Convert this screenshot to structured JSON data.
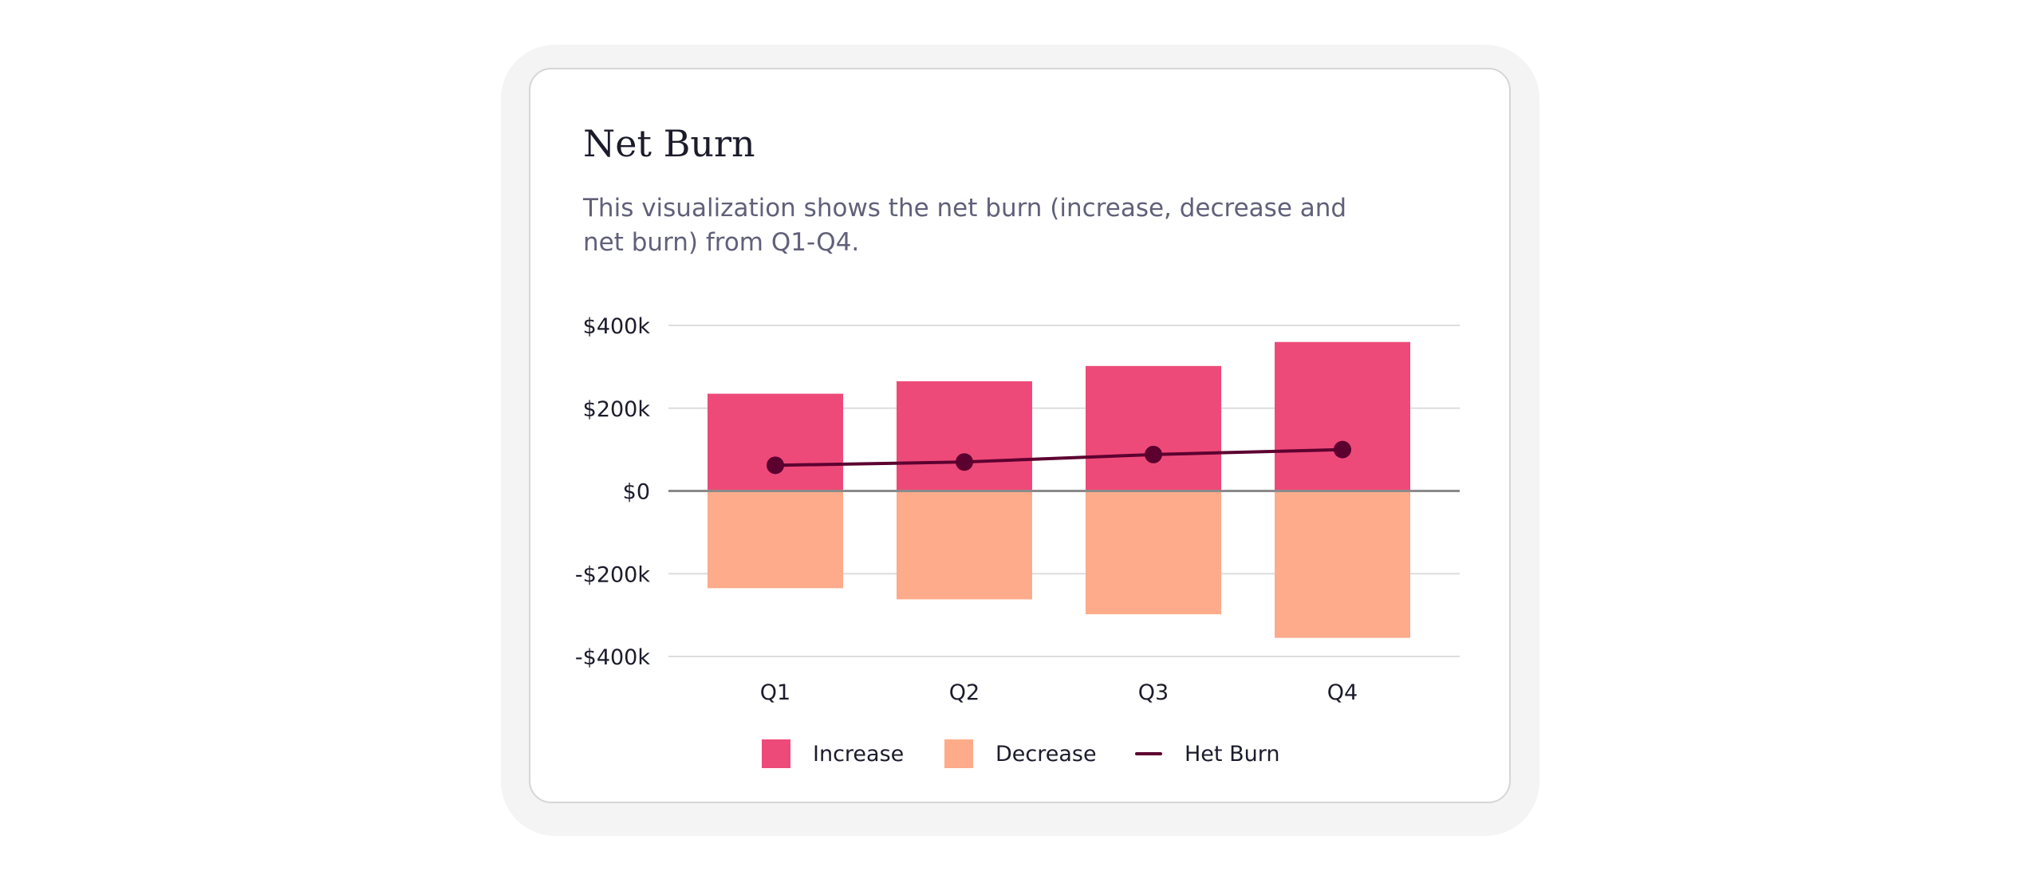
{
  "card": {
    "title": "Net Burn",
    "description": "This visualization shows the net burn (increase, decrease and net burn) from Q1-Q4."
  },
  "colors": {
    "increase": "#ee4a79",
    "decrease": "#fdab8a",
    "net_burn": "#5c0030",
    "zero_line": "#8a8a8a",
    "grid": "#dddddd"
  },
  "chart_data": {
    "type": "bar",
    "title": "Net Burn",
    "xlabel": "",
    "ylabel": "",
    "categories": [
      "Q1",
      "Q2",
      "Q3",
      "Q4"
    ],
    "ylim": [
      -400000,
      400000
    ],
    "yticks": [
      400000,
      200000,
      0,
      -200000,
      -400000
    ],
    "ytick_labels": [
      "$400k",
      "$200k",
      "$0",
      "-$200k",
      "-$400k"
    ],
    "grid": true,
    "legend_position": "bottom",
    "series": [
      {
        "name": "Increase",
        "type": "bar",
        "values": [
          235000,
          265000,
          302000,
          360000
        ]
      },
      {
        "name": "Decrease",
        "type": "bar",
        "values": [
          -235000,
          -262000,
          -298000,
          -355000
        ]
      },
      {
        "name": "Het Burn",
        "type": "line",
        "values": [
          62000,
          70000,
          88000,
          100000
        ]
      }
    ]
  },
  "legend": [
    {
      "label": "Increase",
      "kind": "swatch",
      "color_key": "increase"
    },
    {
      "label": "Decrease",
      "kind": "swatch",
      "color_key": "decrease"
    },
    {
      "label": "Het Burn",
      "kind": "line",
      "color_key": "net_burn"
    }
  ]
}
